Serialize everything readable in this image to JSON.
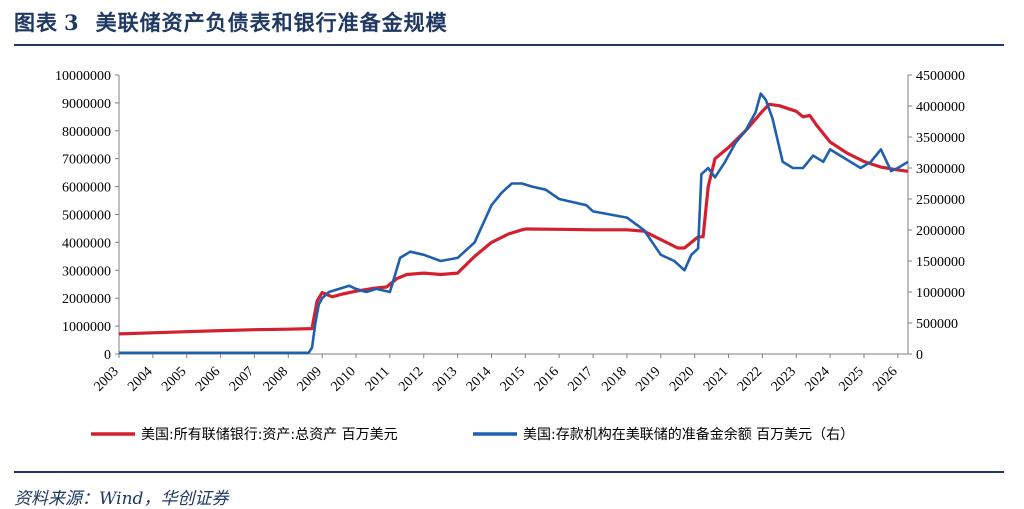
{
  "header": {
    "figure_label": "图表",
    "figure_number": "3",
    "title": "美联储资产负债表和银行准备金规模"
  },
  "footer": {
    "source": "资料来源：Wind，华创证券"
  },
  "colors": {
    "header_navy": "#1f3864",
    "series_assets": "#d3202f",
    "series_reserves": "#1f5fb0"
  },
  "chart_data": {
    "type": "line",
    "title": "美联储资产负债表和银行准备金规模",
    "x_tick_labels": [
      "2003",
      "2004",
      "2005",
      "2006",
      "2007",
      "2008",
      "2009",
      "2010",
      "2011",
      "2012",
      "2013",
      "2014",
      "2015",
      "2016",
      "2017",
      "2018",
      "2019",
      "2020",
      "2021",
      "2022",
      "2023",
      "2024",
      "2025",
      "2026"
    ],
    "xlim": [
      2003,
      2026.3
    ],
    "y_left": {
      "ticks": [
        0,
        1000000,
        2000000,
        3000000,
        4000000,
        5000000,
        6000000,
        7000000,
        8000000,
        9000000,
        10000000
      ],
      "ylim": [
        0,
        10000000
      ]
    },
    "y_right": {
      "ticks": [
        0,
        500000,
        1000000,
        1500000,
        2000000,
        2500000,
        3000000,
        3500000,
        4000000,
        4500000
      ],
      "ylim": [
        0,
        4500000
      ]
    },
    "grid": false,
    "legend_position": "bottom",
    "series": [
      {
        "name": "美国:所有联储银行:资产:总资产 百万美元",
        "axis": "left",
        "color": "#d3202f",
        "x": [
          2003,
          2004,
          2005,
          2006,
          2007,
          2008,
          2008.7,
          2008.85,
          2009,
          2009.3,
          2009.6,
          2010,
          2010.5,
          2010.9,
          2011.2,
          2011.5,
          2012,
          2012.5,
          2013,
          2013.5,
          2014,
          2014.5,
          2014.9,
          2015,
          2016,
          2017,
          2018,
          2018.5,
          2019,
          2019.5,
          2019.7,
          2020.0,
          2020.1,
          2020.25,
          2020.4,
          2020.6,
          2021,
          2021.5,
          2022,
          2022.2,
          2022.5,
          2023,
          2023.2,
          2023.4,
          2023.6,
          2024,
          2024.5,
          2025,
          2025.5,
          2026,
          2026.3
        ],
        "values": [
          720000,
          760000,
          800000,
          840000,
          870000,
          890000,
          910000,
          1900000,
          2200000,
          2050000,
          2150000,
          2250000,
          2350000,
          2400000,
          2700000,
          2850000,
          2900000,
          2850000,
          2900000,
          3500000,
          4000000,
          4300000,
          4450000,
          4480000,
          4470000,
          4450000,
          4450000,
          4400000,
          4100000,
          3800000,
          3800000,
          4100000,
          4200000,
          4200000,
          6000000,
          7000000,
          7400000,
          8000000,
          8700000,
          8950000,
          8900000,
          8700000,
          8500000,
          8550000,
          8200000,
          7600000,
          7200000,
          6900000,
          6700000,
          6600000,
          6550000
        ]
      },
      {
        "name": "美国:存款机构在美联储的准备金余额 百万美元（右）",
        "axis": "right",
        "color": "#1f5fb0",
        "x": [
          2003,
          2008.6,
          2008.7,
          2008.8,
          2008.9,
          2009.0,
          2009.2,
          2009.5,
          2009.8,
          2010,
          2010.3,
          2010.6,
          2011,
          2011.3,
          2011.6,
          2012,
          2012.5,
          2013,
          2013.5,
          2014,
          2014.3,
          2014.6,
          2014.9,
          2015.2,
          2015.6,
          2016,
          2016.4,
          2016.8,
          2017,
          2017.5,
          2018,
          2018.5,
          2019,
          2019.4,
          2019.7,
          2019.9,
          2020.1,
          2020.2,
          2020.4,
          2020.6,
          2020.9,
          2021.2,
          2021.5,
          2021.8,
          2021.95,
          2022.1,
          2022.3,
          2022.6,
          2022.9,
          2023.2,
          2023.5,
          2023.8,
          2024.0,
          2024.3,
          2024.6,
          2024.9,
          2025.2,
          2025.5,
          2025.8,
          2026.0,
          2026.3
        ],
        "values": [
          20000,
          20000,
          100000,
          500000,
          800000,
          900000,
          1000000,
          1050000,
          1100000,
          1050000,
          1000000,
          1050000,
          1000000,
          1550000,
          1650000,
          1600000,
          1500000,
          1550000,
          1800000,
          2400000,
          2600000,
          2750000,
          2750000,
          2700000,
          2650000,
          2500000,
          2450000,
          2400000,
          2300000,
          2250000,
          2200000,
          2000000,
          1600000,
          1500000,
          1350000,
          1600000,
          1700000,
          2900000,
          3000000,
          2850000,
          3100000,
          3400000,
          3600000,
          3900000,
          4200000,
          4100000,
          3800000,
          3100000,
          3000000,
          3000000,
          3200000,
          3100000,
          3300000,
          3200000,
          3100000,
          3000000,
          3100000,
          3300000,
          2950000,
          3000000,
          3100000
        ]
      }
    ]
  }
}
